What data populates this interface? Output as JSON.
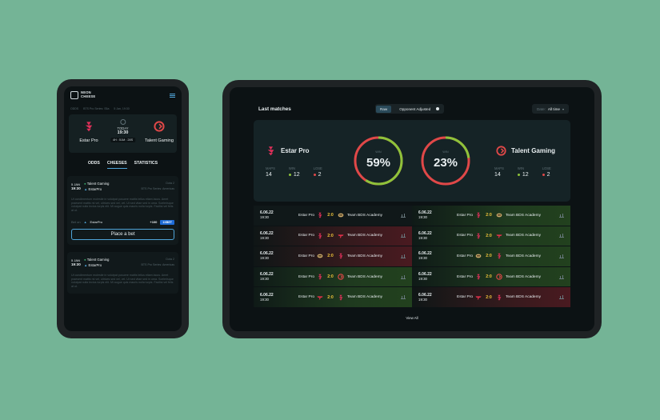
{
  "colors": {
    "background": "#74b496",
    "accent_blue": "#4fa4d8",
    "win_green": "#8ec33a",
    "loss_red": "#e04848",
    "score_yellow": "#f0c43a"
  },
  "phone": {
    "logo_line1": "NEON",
    "logo_line2": "CHEESE",
    "breadcrumb": [
      "ODDS",
      "BTS Pro Series: S5a",
      "5 Jan, 19:30"
    ],
    "match": {
      "team_left": "Estar Pro",
      "team_right": "Talent Gaming",
      "day": "TODAY",
      "time": "19:30",
      "countdown": "4H : 51M : 28S"
    },
    "tabs": [
      "ODDS",
      "CHEESES",
      "STATISTICS"
    ],
    "active_tab": "CHEESES",
    "cards": [
      {
        "date_day": "5 JAN",
        "date_time": "19:30",
        "team1": "Talent Gaming",
        "team2": "EstarPro",
        "format": "Dota 2",
        "league": "BTS Pro Series: Americas",
        "description": "Ut condimentum molestie in volutpat posuere mattis tellus etiam lacus. Amet praesent mattis mi vel, ultrices sed vel, vel. Ut sed vitae sed in urna. Scelerisque volutpat nulla lectus turpis elit. Mi augue quis mauris nulla turpis. Facilisi vel felis at ut.",
        "bet_label": "Bet on",
        "bet_team": "EstarPro",
        "odds": "+100",
        "bookmaker": "1XBET",
        "place_bet": "Place a bet"
      },
      {
        "date_day": "5 JAN",
        "date_time": "19:30",
        "team1": "Talent Gaming",
        "team2": "EstarPro",
        "format": "Dota 2",
        "league": "BTS Pro Series: Americas",
        "description": "Ut condimentum molestie in volutpat posuere mattis tellus etiam lacus. Amet praesent mattis mi vel, ultrices sed vel, vel. Ut sed vitae sed in urna. Scelerisque volutpat nulla lectus turpis elit. Mi augue quis mauris nulla turpis. Facilisi vel felis at ut."
      }
    ]
  },
  "tablet": {
    "title": "Last matches",
    "toggle": [
      "Raw",
      "Opponent Adjusted"
    ],
    "toggle_active": "Raw",
    "date_label": "Date:",
    "date_value": "All time",
    "team_left": {
      "name": "Estar Pro",
      "maps_label": "MAPS",
      "maps": "14",
      "win_label": "WIN",
      "win": "12",
      "lose_label": "LOSE",
      "lose": "2"
    },
    "team_right": {
      "name": "Talent Gaming",
      "maps_label": "MAPS",
      "maps": "14",
      "win_label": "WIN",
      "win": "12",
      "lose_label": "LOSE",
      "lose": "2"
    },
    "ring_left": {
      "label": "WIN",
      "value": "59%",
      "fraction": 0.59
    },
    "ring_right": {
      "label": "WIN",
      "value": "23%",
      "fraction": 0.23
    },
    "rows": [
      {
        "left": {
          "date": "6.06.22",
          "time": "19:30",
          "team1": "Estar Pro",
          "score": "2:0",
          "team2": "Team BDS Academy",
          "result": "draw",
          "icon1": "estar",
          "icon2": "bds"
        },
        "right": {
          "date": "6.06.22",
          "time": "19:30",
          "team1": "Estar Pro",
          "score": "2:0",
          "team2": "Team BDS Academy",
          "result": "win",
          "icon1": "estar",
          "icon2": "bds"
        }
      },
      {
        "left": {
          "date": "6.06.22",
          "time": "19:30",
          "team1": "Estar Pro",
          "score": "2:0",
          "team2": "Team BDS Academy",
          "result": "loss",
          "icon1": "estar",
          "icon2": "t1"
        },
        "right": {
          "date": "6.06.22",
          "time": "19:30",
          "team1": "Estar Pro",
          "score": "2:0",
          "team2": "Team BDS Academy",
          "result": "win",
          "icon1": "estar",
          "icon2": "t1"
        }
      },
      {
        "left": {
          "date": "6.06.22",
          "time": "19:30",
          "team1": "Estar Pro",
          "score": "2:0",
          "team2": "Team BDS Academy",
          "result": "loss",
          "icon1": "bds",
          "icon2": "estar"
        },
        "right": {
          "date": "6.06.22",
          "time": "19:30",
          "team1": "Estar Pro",
          "score": "2:0",
          "team2": "Team BDS Academy",
          "result": "win",
          "icon1": "bds",
          "icon2": "estar"
        }
      },
      {
        "left": {
          "date": "6.06.22",
          "time": "19:30",
          "team1": "Estar Pro",
          "score": "2:0",
          "team2": "Team BDS Academy",
          "result": "win",
          "icon1": "estar",
          "icon2": "talent"
        },
        "right": {
          "date": "6.06.22",
          "time": "19:30",
          "team1": "Estar Pro",
          "score": "2:0",
          "team2": "Team BDS Academy",
          "result": "win",
          "icon1": "estar",
          "icon2": "talent"
        }
      },
      {
        "left": {
          "date": "6.06.22",
          "time": "19:30",
          "team1": "Estar Pro",
          "score": "2:0",
          "team2": "Team BDS Academy",
          "result": "win",
          "icon1": "t1",
          "icon2": "estar"
        },
        "right": {
          "date": "6.06.22",
          "time": "19:30",
          "team1": "Estar Pro",
          "score": "2:0",
          "team2": "Team BDS Academy",
          "result": "loss",
          "icon1": "t1",
          "icon2": "estar"
        }
      }
    ],
    "view_all": "View All"
  }
}
